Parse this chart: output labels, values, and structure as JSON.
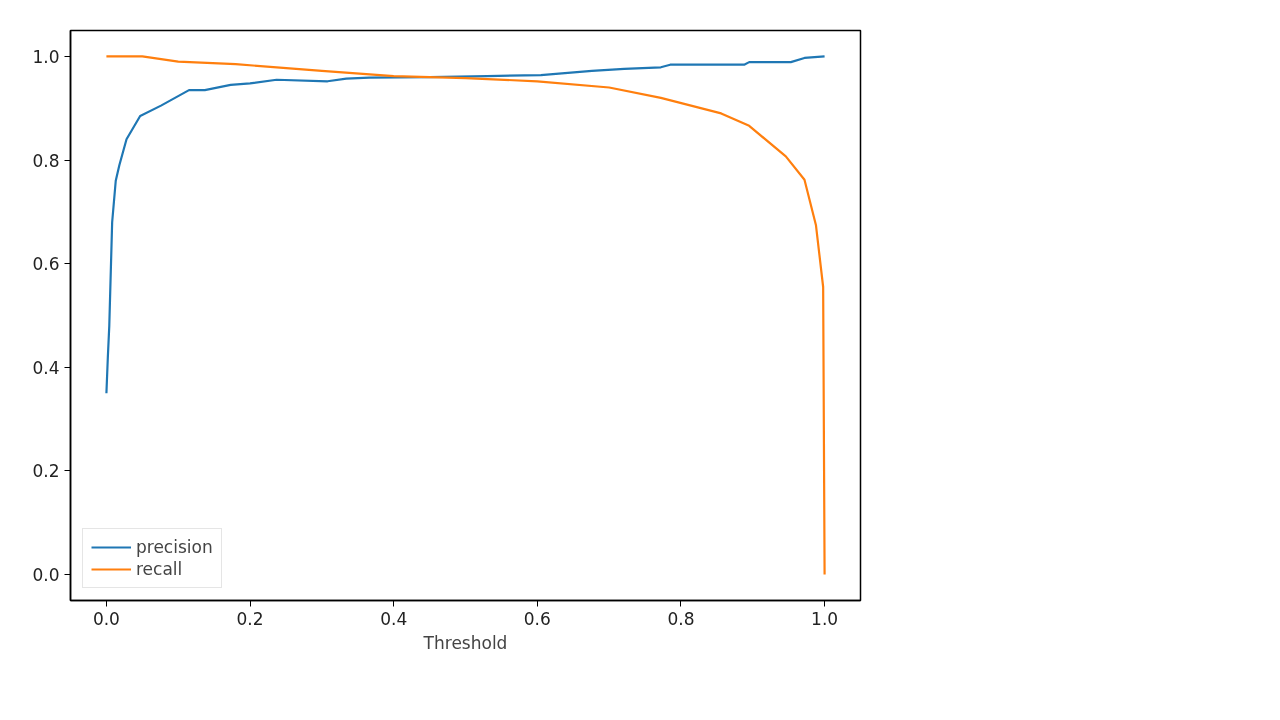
{
  "chart_data": {
    "type": "line",
    "xlabel": "Threshold",
    "xlim": [
      -0.05,
      1.05
    ],
    "ylim": [
      -0.05,
      1.05
    ],
    "xticks": [
      {
        "value": 0,
        "label": "0.0"
      },
      0.2,
      0.4,
      0.6,
      0.8,
      {
        "value": 1,
        "label": "1.0"
      }
    ],
    "yticks": [
      {
        "value": 0,
        "label": "0.0"
      },
      0.2,
      0.4,
      0.6,
      0.8,
      {
        "value": 1,
        "label": "1.0"
      }
    ],
    "grid": false,
    "legend": "bottom left",
    "line_style": "solid",
    "series": [
      {
        "name": "precision",
        "color": "#1f77b4",
        "x": [
          0,
          0.002,
          0.004,
          0.008,
          0.013,
          0.018,
          0.028,
          0.047,
          0.076,
          0.115,
          0.137,
          0.173,
          0.2,
          0.237,
          0.308,
          0.334,
          0.366,
          0.45,
          0.53,
          0.605,
          0.676,
          0.721,
          0.772,
          0.785,
          0.888,
          0.895,
          0.953,
          0.972,
          1.0
        ],
        "values": [
          0.35,
          0.42,
          0.48,
          0.68,
          0.76,
          0.79,
          0.84,
          0.885,
          0.905,
          0.935,
          0.935,
          0.945,
          0.948,
          0.955,
          0.952,
          0.957,
          0.959,
          0.96,
          0.962,
          0.964,
          0.972,
          0.976,
          0.979,
          0.984,
          0.984,
          0.989,
          0.989,
          0.997,
          1.0
        ]
      },
      {
        "name": "recall",
        "color": "#ff7f0e",
        "x": [
          0,
          0.05,
          0.1,
          0.18,
          0.3,
          0.4,
          0.5,
          0.6,
          0.7,
          0.772,
          0.856,
          0.895,
          0.946,
          0.972,
          0.988,
          0.998,
          1.0
        ],
        "values": [
          1.0,
          1.0,
          0.99,
          0.985,
          0.972,
          0.962,
          0.958,
          0.952,
          0.94,
          0.92,
          0.89,
          0.866,
          0.807,
          0.762,
          0.674,
          0.555,
          0.0
        ]
      }
    ]
  }
}
